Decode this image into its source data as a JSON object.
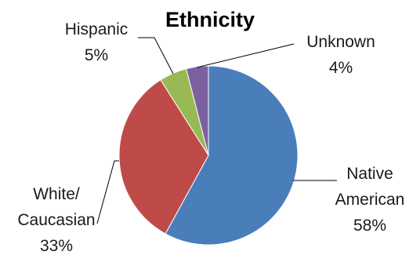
{
  "chart_data": {
    "type": "pie",
    "title": "Ethnicity",
    "slices": [
      {
        "lines": [
          "Native",
          "American"
        ],
        "value": 58,
        "percent_label": "58%",
        "color": "#4a7ebb"
      },
      {
        "lines": [
          "White/",
          "Caucasian"
        ],
        "value": 33,
        "percent_label": "33%",
        "color": "#be4b48"
      },
      {
        "lines": [
          "Hispanic"
        ],
        "value": 5,
        "percent_label": "5%",
        "color": "#98b954"
      },
      {
        "lines": [
          "Unknown"
        ],
        "value": 4,
        "percent_label": "4%",
        "color": "#7d60a0"
      }
    ],
    "legend": "none"
  }
}
